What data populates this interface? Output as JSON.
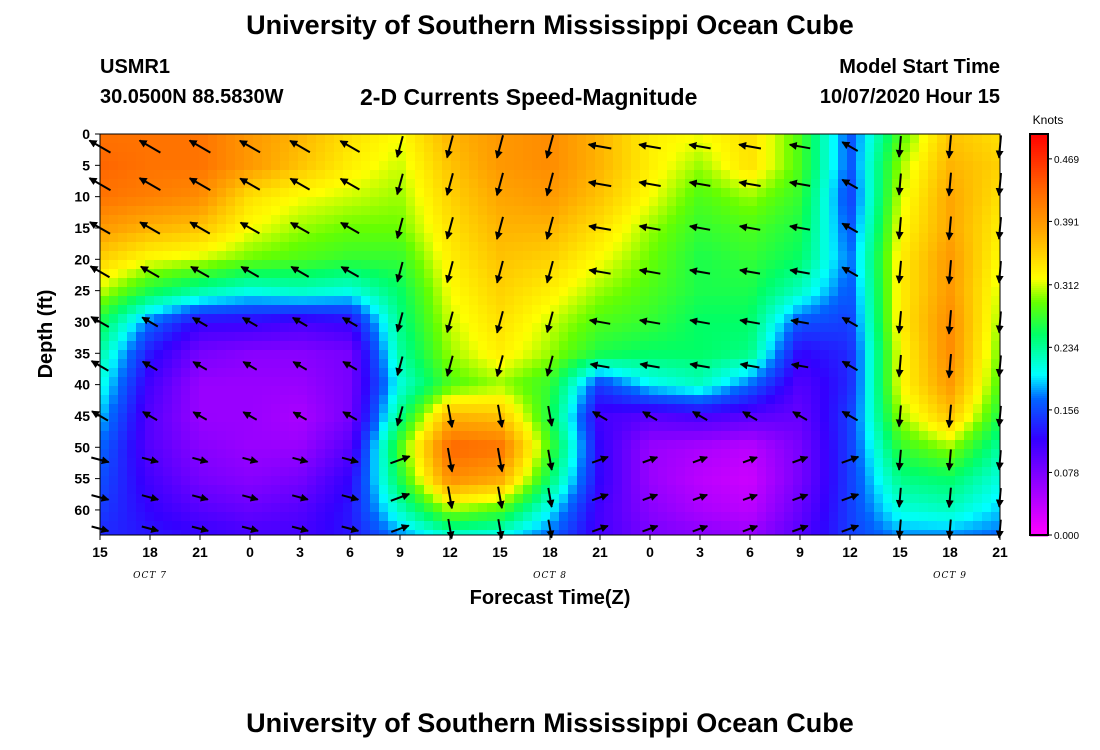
{
  "header": {
    "title": "University of Southern Mississippi Ocean Cube",
    "station_id": "USMR1",
    "station_coords": "30.0500N 88.5830W",
    "subtitle": "2-D Currents Speed-Magnitude",
    "model_label": "Model Start Time",
    "model_date": "10/07/2020 Hour 15"
  },
  "footer": {
    "title": "University of Southern Mississippi Ocean Cube"
  },
  "chart_data": {
    "type": "heatmap",
    "xlabel": "Forecast Time(Z)",
    "ylabel": "Depth (ft)",
    "x_tick_labels": [
      "15",
      "18",
      "21",
      "0",
      "3",
      "6",
      "9",
      "12",
      "15",
      "18",
      "21",
      "0",
      "3",
      "6",
      "9",
      "12",
      "15",
      "18",
      "21"
    ],
    "y_tick_labels": [
      "0",
      "5",
      "10",
      "15",
      "20",
      "25",
      "30",
      "35",
      "40",
      "45",
      "50",
      "55",
      "60"
    ],
    "ylim": [
      0,
      64
    ],
    "date_labels": [
      {
        "text": "OCT 7",
        "hour": 3
      },
      {
        "text": "OCT 8",
        "hour": 27
      },
      {
        "text": "OCT 9",
        "hour": 51
      }
    ],
    "colorbar": {
      "unit": "Knots",
      "range": [
        0,
        0.5
      ],
      "tick_labels": [
        "0.469",
        "0.391",
        "0.312",
        "0.234",
        "0.156",
        "0.078",
        "0.000"
      ],
      "tick_values": [
        0.469,
        0.391,
        0.312,
        0.234,
        0.156,
        0.078,
        0.0
      ],
      "stops": [
        {
          "v": 0.0,
          "color": "#ff00ff"
        },
        {
          "v": 0.06,
          "color": "#9900ff"
        },
        {
          "v": 0.12,
          "color": "#3300ff"
        },
        {
          "v": 0.17,
          "color": "#0066ff"
        },
        {
          "v": 0.2,
          "color": "#00ffff"
        },
        {
          "v": 0.25,
          "color": "#00ff66"
        },
        {
          "v": 0.29,
          "color": "#66ff00"
        },
        {
          "v": 0.32,
          "color": "#ffff00"
        },
        {
          "v": 0.38,
          "color": "#ffa500"
        },
        {
          "v": 0.43,
          "color": "#ff6600"
        },
        {
          "v": 0.5,
          "color": "#ff0000"
        }
      ]
    },
    "hours": [
      0,
      3,
      6,
      9,
      12,
      15,
      18,
      21,
      24,
      27,
      30,
      33,
      36,
      39,
      42,
      45,
      48,
      51,
      54
    ],
    "depths": [
      0,
      5,
      10,
      15,
      20,
      25,
      30,
      35,
      40,
      45,
      50,
      55,
      60,
      64
    ],
    "speed": [
      [
        0.42,
        0.42,
        0.42,
        0.39,
        0.37,
        0.34,
        0.32,
        0.37,
        0.39,
        0.4,
        0.37,
        0.33,
        0.32,
        0.34,
        0.28,
        0.16,
        0.28,
        0.36,
        0.34
      ],
      [
        0.43,
        0.42,
        0.42,
        0.39,
        0.36,
        0.33,
        0.31,
        0.36,
        0.39,
        0.4,
        0.37,
        0.33,
        0.3,
        0.34,
        0.28,
        0.16,
        0.3,
        0.37,
        0.35
      ],
      [
        0.42,
        0.41,
        0.4,
        0.34,
        0.32,
        0.31,
        0.3,
        0.35,
        0.38,
        0.39,
        0.36,
        0.32,
        0.28,
        0.3,
        0.27,
        0.15,
        0.31,
        0.38,
        0.34
      ],
      [
        0.39,
        0.37,
        0.36,
        0.32,
        0.3,
        0.29,
        0.29,
        0.34,
        0.37,
        0.37,
        0.34,
        0.3,
        0.27,
        0.28,
        0.26,
        0.16,
        0.32,
        0.38,
        0.33
      ],
      [
        0.35,
        0.32,
        0.31,
        0.29,
        0.28,
        0.27,
        0.27,
        0.33,
        0.36,
        0.35,
        0.32,
        0.29,
        0.26,
        0.27,
        0.25,
        0.17,
        0.33,
        0.39,
        0.32
      ],
      [
        0.31,
        0.26,
        0.23,
        0.21,
        0.22,
        0.21,
        0.25,
        0.32,
        0.35,
        0.33,
        0.3,
        0.28,
        0.26,
        0.26,
        0.22,
        0.16,
        0.33,
        0.39,
        0.31
      ],
      [
        0.26,
        0.17,
        0.12,
        0.12,
        0.11,
        0.12,
        0.24,
        0.31,
        0.34,
        0.31,
        0.28,
        0.27,
        0.25,
        0.25,
        0.16,
        0.15,
        0.33,
        0.4,
        0.3
      ],
      [
        0.23,
        0.13,
        0.08,
        0.07,
        0.07,
        0.08,
        0.23,
        0.3,
        0.33,
        0.3,
        0.26,
        0.25,
        0.25,
        0.24,
        0.12,
        0.14,
        0.32,
        0.4,
        0.29
      ],
      [
        0.21,
        0.11,
        0.06,
        0.06,
        0.06,
        0.08,
        0.21,
        0.28,
        0.3,
        0.27,
        0.15,
        0.2,
        0.22,
        0.17,
        0.1,
        0.14,
        0.32,
        0.39,
        0.28
      ],
      [
        0.19,
        0.1,
        0.06,
        0.06,
        0.05,
        0.08,
        0.24,
        0.37,
        0.36,
        0.26,
        0.11,
        0.1,
        0.11,
        0.1,
        0.09,
        0.15,
        0.3,
        0.36,
        0.26
      ],
      [
        0.17,
        0.1,
        0.07,
        0.06,
        0.06,
        0.1,
        0.28,
        0.43,
        0.42,
        0.28,
        0.12,
        0.06,
        0.05,
        0.04,
        0.08,
        0.15,
        0.27,
        0.3,
        0.23
      ],
      [
        0.16,
        0.11,
        0.08,
        0.07,
        0.08,
        0.12,
        0.26,
        0.4,
        0.38,
        0.25,
        0.12,
        0.06,
        0.04,
        0.03,
        0.08,
        0.15,
        0.24,
        0.25,
        0.21
      ],
      [
        0.15,
        0.12,
        0.1,
        0.09,
        0.1,
        0.13,
        0.22,
        0.3,
        0.28,
        0.2,
        0.11,
        0.07,
        0.05,
        0.04,
        0.09,
        0.15,
        0.21,
        0.22,
        0.19
      ],
      [
        0.14,
        0.13,
        0.12,
        0.11,
        0.11,
        0.13,
        0.18,
        0.22,
        0.21,
        0.17,
        0.11,
        0.08,
        0.07,
        0.06,
        0.1,
        0.15,
        0.18,
        0.18,
        0.17
      ]
    ]
  }
}
